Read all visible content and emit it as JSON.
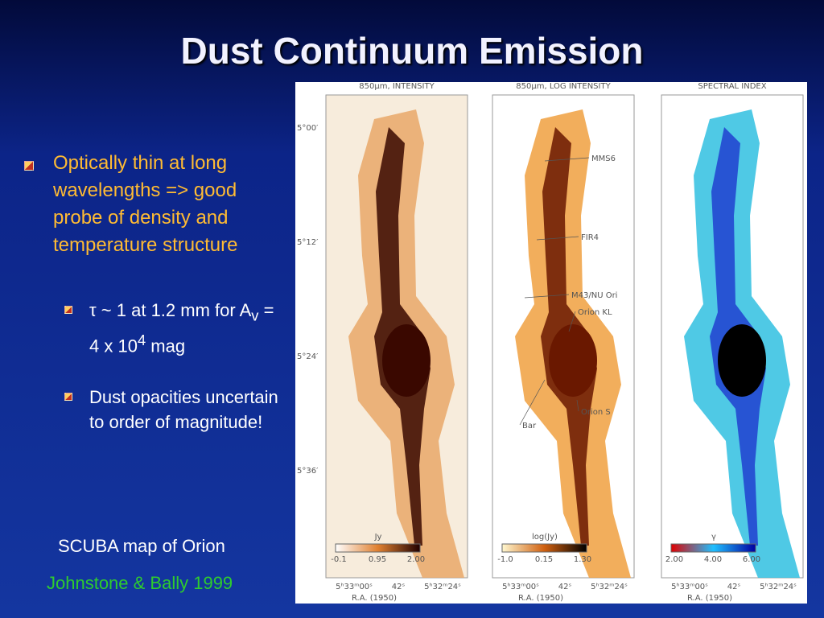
{
  "slide": {
    "title": "Dust Continuum Emission",
    "bullets": [
      {
        "text": "Optically thin at long wavelengths => good probe of density and temperature structure",
        "sub": [
          {
            "parts": [
              "τ ~ 1 at 1.2 mm for A",
              "v",
              " = 4 x 10",
              "4",
              " mag"
            ]
          },
          {
            "parts": [
              "Dust opacities uncertain to order of magnitude!"
            ]
          }
        ]
      }
    ],
    "caption": "SCUBA map of Orion",
    "credit": "Johnstone & Bally 1999"
  },
  "figure": {
    "panels": [
      {
        "title": "850μm, INTENSITY",
        "unit": "Jy",
        "scale": [
          "-0.1",
          "0.95",
          "2.00"
        ]
      },
      {
        "title": "850μm, LOG INTENSITY",
        "unit": "log(Jy)",
        "scale": [
          "-1.0",
          "0.15",
          "1.30"
        ]
      },
      {
        "title": "SPECTRAL INDEX",
        "unit": "γ",
        "scale": [
          "2.00",
          "4.00",
          "6.00"
        ]
      }
    ],
    "dec_labels": [
      "5°00′",
      "5°12′",
      "5°24′",
      "5°36′"
    ],
    "ra_labels": [
      "5ʰ33ᵐ00ˢ",
      "42ˢ",
      "5ʰ32ᵐ24ˢ"
    ],
    "ra_axis": "R.A. (1950)",
    "annotations": [
      "MMS6",
      "FIR4",
      "M43/NU Ori",
      "Orion KL",
      "Orion S",
      "Bar"
    ]
  }
}
